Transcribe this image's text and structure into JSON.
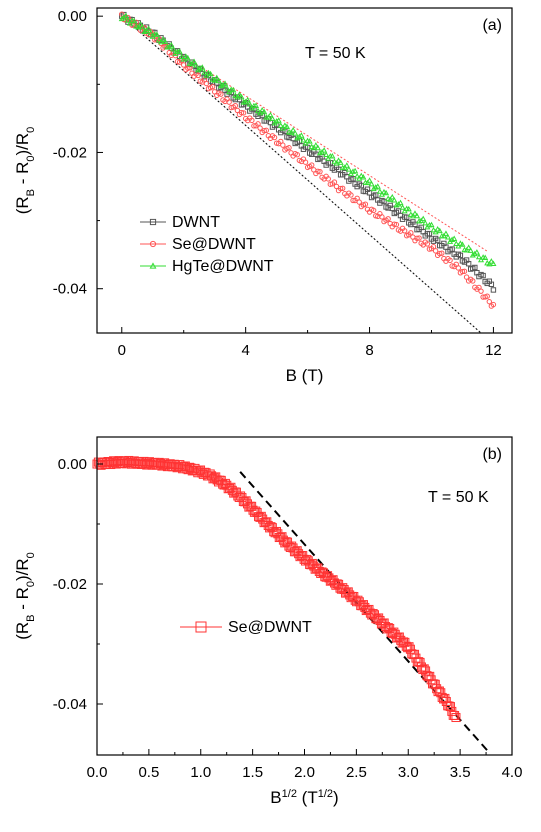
{
  "chart_data": [
    {
      "type": "scatter",
      "panel_label": "(a)",
      "annotation": "T = 50 K",
      "xlabel": "B (T)",
      "ylabel": "(R_B - R_0)/R_0",
      "ylabel_parts": {
        "open": "(R",
        "sub1": "B",
        "mid": " - R",
        "sub2": "0",
        "close": ")/R",
        "sub3": "0"
      },
      "xlim": [
        -0.8,
        12.6
      ],
      "ylim": [
        -0.0465,
        0.0012
      ],
      "xticks": [
        0,
        4,
        8,
        12
      ],
      "xtick_labels": [
        "0",
        "4",
        "8",
        "12"
      ],
      "yticks": [
        0.0,
        -0.02,
        -0.04
      ],
      "ytick_labels": [
        "0.00",
        "-0.02",
        "-0.04"
      ],
      "grid": false,
      "legend_position": "bottom-left",
      "series": [
        {
          "name": "DWNT",
          "color": "#555555",
          "marker": "square",
          "x": [
            0,
            1,
            2,
            3,
            4,
            5,
            6,
            7,
            8,
            9,
            10,
            11,
            12
          ],
          "y": [
            0.0,
            -0.0025,
            -0.0062,
            -0.0097,
            -0.0131,
            -0.0163,
            -0.0196,
            -0.0227,
            -0.026,
            -0.0292,
            -0.0325,
            -0.0356,
            -0.0398
          ]
        },
        {
          "name": "Se@DWNT",
          "color": "#ff5555",
          "marker": "circle",
          "x": [
            0,
            1,
            2,
            3,
            4,
            5,
            6,
            7,
            8,
            9,
            10,
            11,
            12
          ],
          "y": [
            0.0,
            -0.0028,
            -0.0072,
            -0.011,
            -0.0148,
            -0.0183,
            -0.0218,
            -0.0252,
            -0.0284,
            -0.0313,
            -0.034,
            -0.0375,
            -0.0425
          ]
        },
        {
          "name": "HgTe@DWNT",
          "color": "#33dd33",
          "marker": "triangle",
          "x": [
            0,
            1,
            2,
            3,
            4,
            5,
            6,
            7,
            8,
            9,
            10,
            11,
            12
          ],
          "y": [
            0.0,
            -0.0026,
            -0.006,
            -0.0092,
            -0.0125,
            -0.0155,
            -0.0185,
            -0.0215,
            -0.0245,
            -0.0278,
            -0.031,
            -0.0338,
            -0.0365
          ]
        }
      ],
      "fit_lines": [
        {
          "color": "#000000",
          "x": [
            0,
            11.6
          ],
          "y": [
            0.0,
            -0.0465
          ]
        },
        {
          "color": "#ff5555",
          "x": [
            0,
            11.8
          ],
          "y": [
            0.0,
            -0.0345
          ]
        }
      ]
    },
    {
      "type": "scatter",
      "panel_label": "(b)",
      "annotation": "T = 50 K",
      "xlabel": "B^1/2 (T^1/2)",
      "xlabel_parts": {
        "base": "B",
        "sup1": "1/2",
        "mid": " (T",
        "sup2": "1/2",
        "close": ")"
      },
      "ylabel": "(R_B - R_0)/R_0",
      "ylabel_parts": {
        "open": "(R",
        "sub1": "B",
        "mid": " - R",
        "sub2": "0",
        "close": ")/R",
        "sub3": "0"
      },
      "xlim": [
        0.0,
        4.0
      ],
      "ylim": [
        -0.0485,
        0.0045
      ],
      "xticks": [
        0.0,
        0.5,
        1.0,
        1.5,
        2.0,
        2.5,
        3.0,
        3.5,
        4.0
      ],
      "xtick_labels": [
        "0.0",
        "0.5",
        "1.0",
        "1.5",
        "2.0",
        "2.5",
        "3.0",
        "3.5",
        "4.0"
      ],
      "yticks": [
        0.0,
        -0.02,
        -0.04
      ],
      "ytick_labels": [
        "0.00",
        "-0.02",
        "-0.04"
      ],
      "grid": false,
      "legend_position": "center-left",
      "series": [
        {
          "name": "Se@DWNT",
          "color": "#ff3333",
          "marker": "square",
          "x": [
            0.0,
            0.2,
            0.3,
            0.4,
            0.5,
            0.6,
            0.7,
            0.8,
            0.9,
            1.0,
            1.1,
            1.2,
            1.3,
            1.4,
            1.5,
            1.6,
            1.7,
            1.8,
            1.9,
            2.0,
            2.1,
            2.2,
            2.3,
            2.4,
            2.5,
            2.6,
            2.7,
            2.8,
            2.9,
            3.0,
            3.1,
            3.2,
            3.3,
            3.4,
            3.46
          ],
          "y": [
            0.0,
            0.0003,
            0.0003,
            0.0002,
            0.0001,
            0.0,
            -0.0002,
            -0.0004,
            -0.0008,
            -0.0013,
            -0.002,
            -0.003,
            -0.0043,
            -0.0058,
            -0.0075,
            -0.0093,
            -0.011,
            -0.0127,
            -0.0143,
            -0.0158,
            -0.0172,
            -0.0186,
            -0.0199,
            -0.0213,
            -0.0227,
            -0.0242,
            -0.0257,
            -0.0273,
            -0.0289,
            -0.0305,
            -0.033,
            -0.0355,
            -0.038,
            -0.0405,
            -0.0425
          ]
        }
      ],
      "fit_lines": [
        {
          "color": "#000000",
          "x": [
            1.38,
            3.76
          ],
          "y": [
            -0.0013,
            -0.0477
          ]
        }
      ]
    }
  ]
}
